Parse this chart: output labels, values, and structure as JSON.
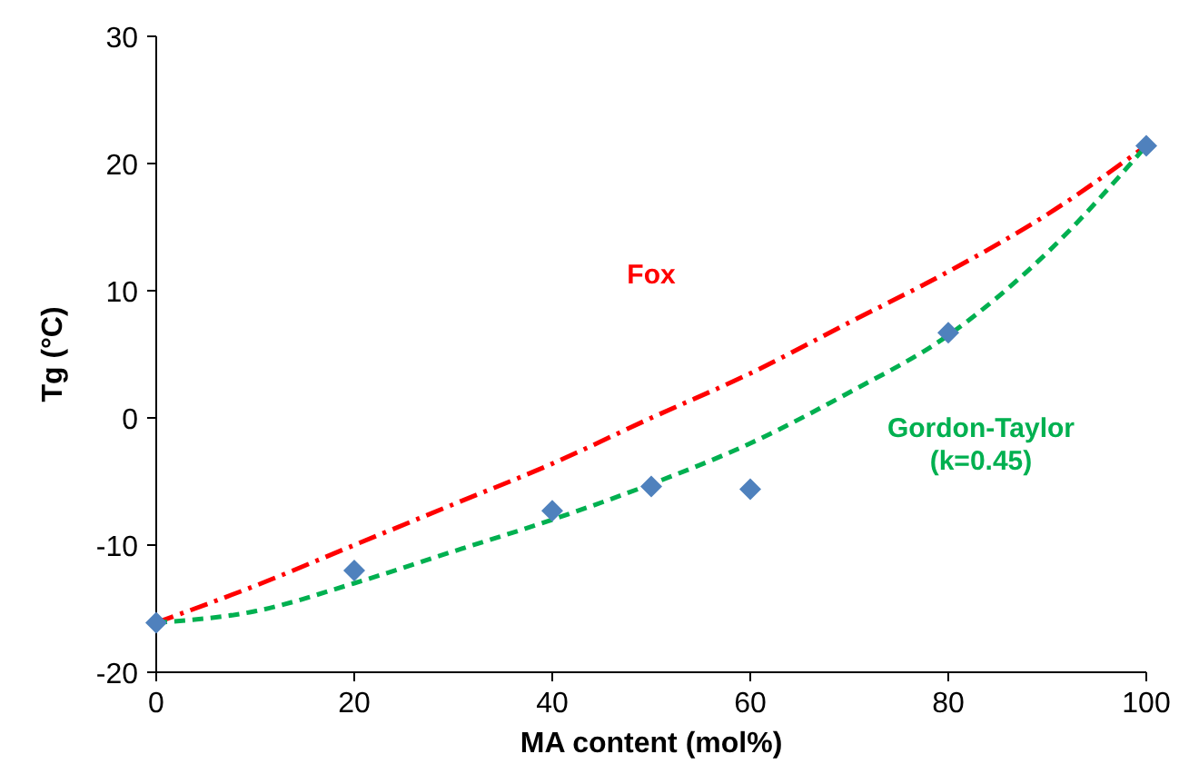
{
  "chart_data": {
    "type": "scatter",
    "xlabel": "MA content (mol%)",
    "ylabel": "Tg (°C)",
    "xlim": [
      0,
      100
    ],
    "xticks": [
      0,
      20,
      40,
      60,
      80,
      100
    ],
    "ylim": [
      -20,
      30
    ],
    "yticks": [
      -20,
      -10,
      0,
      10,
      20,
      30
    ],
    "grid": false,
    "series": [
      {
        "name": "Fox",
        "type": "line",
        "line_style": "dashdot",
        "marker": "none",
        "color": "#ff0000",
        "x": [
          0,
          10,
          20,
          30,
          40,
          50,
          60,
          70,
          80,
          90,
          100
        ],
        "values": [
          -16.1,
          -13.2,
          -10.0,
          -6.8,
          -3.6,
          0,
          3.5,
          7.5,
          11.5,
          16,
          21.4
        ]
      },
      {
        "name": "Gordon-Taylor (k=0.45)",
        "type": "line",
        "line_style": "dashed",
        "marker": "none",
        "color": "#00b050",
        "x": [
          0,
          10,
          20,
          30,
          40,
          50,
          60,
          70,
          80,
          90,
          100
        ],
        "values": [
          -16.1,
          -15.2,
          -13,
          -10.5,
          -8,
          -5.2,
          -2,
          2,
          6.5,
          13,
          21.4
        ]
      },
      {
        "marker": "diamond",
        "color": "#4f81bd",
        "x": [
          0,
          20,
          40,
          50,
          60,
          80,
          100
        ],
        "values": [
          -16.1,
          -12,
          -7.3,
          -5.4,
          -5.6,
          6.7,
          21.4
        ]
      }
    ]
  }
}
